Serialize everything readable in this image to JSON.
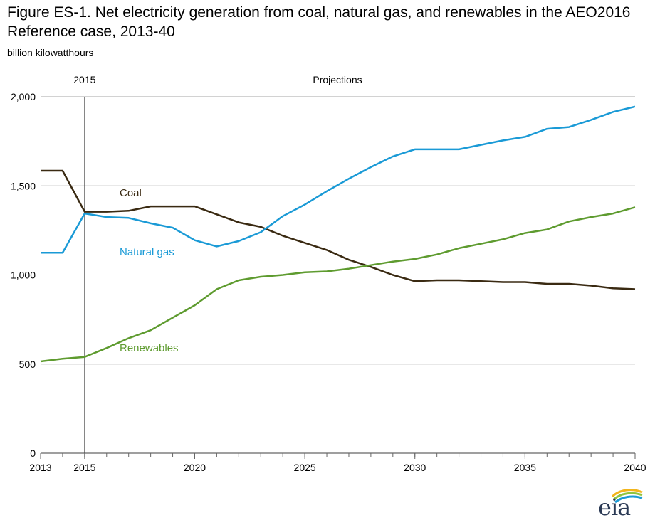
{
  "chart_data": {
    "type": "line",
    "title": "Figure ES-1. Net electricity generation from coal, natural gas, and renewables in the AEO2016 Reference case, 2013-40",
    "ylabel": "billion kilowatthours",
    "xlabel": "",
    "xlim": [
      2013,
      2040
    ],
    "ylim": [
      0,
      2000
    ],
    "yticks": [
      0,
      500,
      1000,
      1500,
      2000
    ],
    "ytick_labels": [
      "0",
      "500",
      "1,000",
      "1,500",
      "2,000"
    ],
    "xticks": [
      2013,
      2015,
      2020,
      2025,
      2030,
      2035,
      2040
    ],
    "xtick_labels": [
      "2013",
      "2015",
      "2020",
      "2025",
      "2030",
      "2035",
      "2040"
    ],
    "grid": "horizontal",
    "x": [
      2013,
      2014,
      2015,
      2016,
      2017,
      2018,
      2019,
      2020,
      2021,
      2022,
      2023,
      2024,
      2025,
      2026,
      2027,
      2028,
      2029,
      2030,
      2031,
      2032,
      2033,
      2034,
      2035,
      2036,
      2037,
      2038,
      2039,
      2040
    ],
    "divider": {
      "x": 2015,
      "left_label": "2015",
      "right_label": "Projections"
    },
    "series": [
      {
        "name": "Coal",
        "color": "#3a2a12",
        "values": [
          1585,
          1585,
          1355,
          1355,
          1360,
          1385,
          1385,
          1385,
          1340,
          1295,
          1270,
          1220,
          1180,
          1140,
          1085,
          1045,
          1000,
          965,
          970,
          970,
          965,
          960,
          960,
          950,
          950,
          940,
          925,
          920
        ]
      },
      {
        "name": "Natural gas",
        "color": "#1a9ad6",
        "values": [
          1125,
          1125,
          1345,
          1325,
          1320,
          1290,
          1265,
          1195,
          1160,
          1190,
          1240,
          1330,
          1395,
          1470,
          1540,
          1605,
          1665,
          1705,
          1705,
          1705,
          1730,
          1755,
          1775,
          1820,
          1830,
          1870,
          1915,
          1945
        ]
      },
      {
        "name": "Renewables",
        "color": "#5e9b2f",
        "values": [
          515,
          530,
          540,
          590,
          645,
          690,
          760,
          830,
          920,
          970,
          990,
          1000,
          1015,
          1020,
          1035,
          1055,
          1075,
          1090,
          1115,
          1150,
          1175,
          1200,
          1235,
          1255,
          1300,
          1325,
          1345,
          1380
        ]
      }
    ]
  },
  "logo": {
    "text": "eia"
  }
}
